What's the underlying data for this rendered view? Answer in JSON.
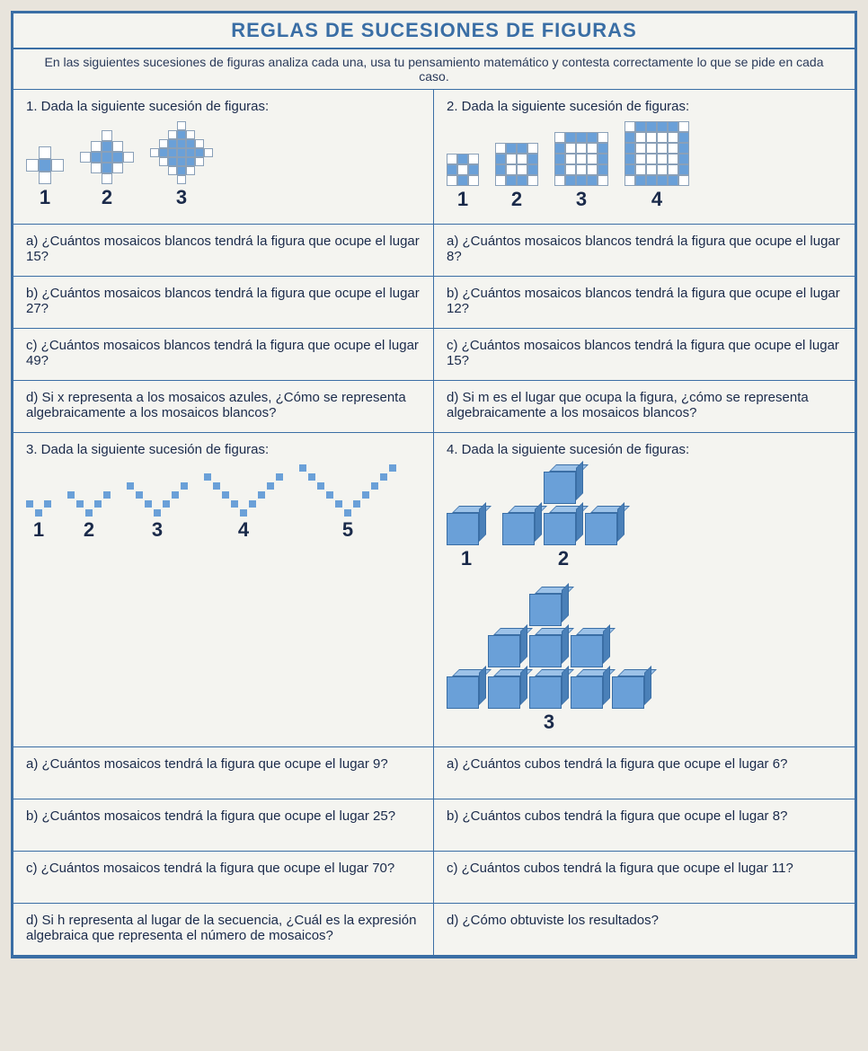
{
  "colors": {
    "frame": "#3a6ea5",
    "tile_blue": "#6aa0d8",
    "tile_white": "#ffffff",
    "tile_border": "#8aa0b8",
    "text": "#1a2a4a",
    "page_bg": "#f4f4f0"
  },
  "title": "REGLAS DE SUCESIONES DE FIGURAS",
  "intro": "En las siguientes sucesiones de figuras analiza cada una, usa tu pensamiento matemático y contesta correctamente lo que se pide en cada caso.",
  "p1": {
    "head": "1. Dada la siguiente sucesión de figuras:",
    "figs": [
      {
        "label": "1",
        "size": 3,
        "cell": 14,
        "grid": [
          [
            0,
            1,
            0
          ],
          [
            1,
            2,
            1
          ],
          [
            0,
            1,
            0
          ]
        ]
      },
      {
        "label": "2",
        "size": 5,
        "cell": 12,
        "grid": [
          [
            0,
            0,
            1,
            0,
            0
          ],
          [
            0,
            1,
            2,
            1,
            0
          ],
          [
            1,
            2,
            2,
            2,
            1
          ],
          [
            0,
            1,
            2,
            1,
            0
          ],
          [
            0,
            0,
            1,
            0,
            0
          ]
        ]
      },
      {
        "label": "3",
        "size": 7,
        "cell": 10,
        "grid": [
          [
            0,
            0,
            0,
            1,
            0,
            0,
            0
          ],
          [
            0,
            0,
            1,
            2,
            1,
            0,
            0
          ],
          [
            0,
            1,
            2,
            2,
            2,
            1,
            0
          ],
          [
            1,
            2,
            2,
            2,
            2,
            2,
            1
          ],
          [
            0,
            1,
            2,
            2,
            2,
            1,
            0
          ],
          [
            0,
            0,
            1,
            2,
            1,
            0,
            0
          ],
          [
            0,
            0,
            0,
            1,
            0,
            0,
            0
          ]
        ]
      }
    ],
    "qa": "a) ¿Cuántos mosaicos blancos tendrá la figura que ocupe el lugar 15?",
    "qb": "b) ¿Cuántos mosaicos blancos tendrá la figura que ocupe el lugar 27?",
    "qc": "c) ¿Cuántos mosaicos blancos tendrá la figura que ocupe el lugar 49?",
    "qd": "d) Si x representa a los mosaicos azules, ¿Cómo se representa algebraicamente a los mosaicos blancos?"
  },
  "p2": {
    "head": "2. Dada la siguiente sucesión de figuras:",
    "figs": [
      {
        "label": "1",
        "size": 3,
        "cell": 12,
        "grid": [
          [
            1,
            2,
            1
          ],
          [
            2,
            1,
            2
          ],
          [
            1,
            2,
            1
          ]
        ]
      },
      {
        "label": "2",
        "size": 4,
        "cell": 12,
        "grid": [
          [
            1,
            2,
            2,
            1
          ],
          [
            2,
            1,
            1,
            2
          ],
          [
            2,
            1,
            1,
            2
          ],
          [
            1,
            2,
            2,
            1
          ]
        ]
      },
      {
        "label": "3",
        "size": 5,
        "cell": 12,
        "grid": [
          [
            1,
            2,
            2,
            2,
            1
          ],
          [
            2,
            1,
            1,
            1,
            2
          ],
          [
            2,
            1,
            1,
            1,
            2
          ],
          [
            2,
            1,
            1,
            1,
            2
          ],
          [
            1,
            2,
            2,
            2,
            1
          ]
        ]
      },
      {
        "label": "4",
        "size": 6,
        "cell": 12,
        "grid": [
          [
            1,
            2,
            2,
            2,
            2,
            1
          ],
          [
            2,
            1,
            1,
            1,
            1,
            2
          ],
          [
            2,
            1,
            1,
            1,
            1,
            2
          ],
          [
            2,
            1,
            1,
            1,
            1,
            2
          ],
          [
            2,
            1,
            1,
            1,
            1,
            2
          ],
          [
            1,
            2,
            2,
            2,
            2,
            1
          ]
        ]
      }
    ],
    "qa": "a) ¿Cuántos mosaicos blancos tendrá la figura que ocupe el lugar 8?",
    "qb": "b) ¿Cuántos mosaicos blancos tendrá la figura que ocupe el lugar 12?",
    "qc": "c) ¿Cuántos mosaicos blancos tendrá la figura que ocupe el lugar 15?",
    "qd": "d) Si m es el lugar que ocupa la figura, ¿cómo se representa algebraicamente a los mosaicos blancos?"
  },
  "p3": {
    "head": "3. Dada la siguiente sucesión de figuras:",
    "figs": [
      {
        "label": "1",
        "rows": 1
      },
      {
        "label": "2",
        "rows": 2
      },
      {
        "label": "3",
        "rows": 3
      },
      {
        "label": "4",
        "rows": 4
      },
      {
        "label": "5",
        "rows": 5
      }
    ],
    "dot_size": 8,
    "dot_gap": 2,
    "qa": "a) ¿Cuántos mosaicos tendrá la figura que ocupe el lugar 9?",
    "qb": "b) ¿Cuántos mosaicos tendrá la figura que ocupe el lugar 25?",
    "qc": "c) ¿Cuántos mosaicos tendrá la figura que ocupe el lugar 70?",
    "qd": "d) Si h representa al lugar de la secuencia, ¿Cuál es la expresión algebraica que representa el número de mosaicos?"
  },
  "p4": {
    "head": "4. Dada la siguiente sucesión de figuras:",
    "figs": [
      {
        "label": "1",
        "cols": [
          1
        ]
      },
      {
        "label": "2",
        "cols": [
          1,
          2,
          1
        ]
      },
      {
        "label": "3",
        "cols": [
          1,
          2,
          3,
          2,
          1
        ]
      }
    ],
    "qa": "a) ¿Cuántos cubos tendrá la figura que ocupe el lugar 6?",
    "qb": "b) ¿Cuántos cubos tendrá la figura que ocupe el lugar 8?",
    "qc": "c) ¿Cuántos cubos tendrá la figura que ocupe el lugar 11?",
    "qd": "d) ¿Cómo obtuviste los resultados?"
  }
}
